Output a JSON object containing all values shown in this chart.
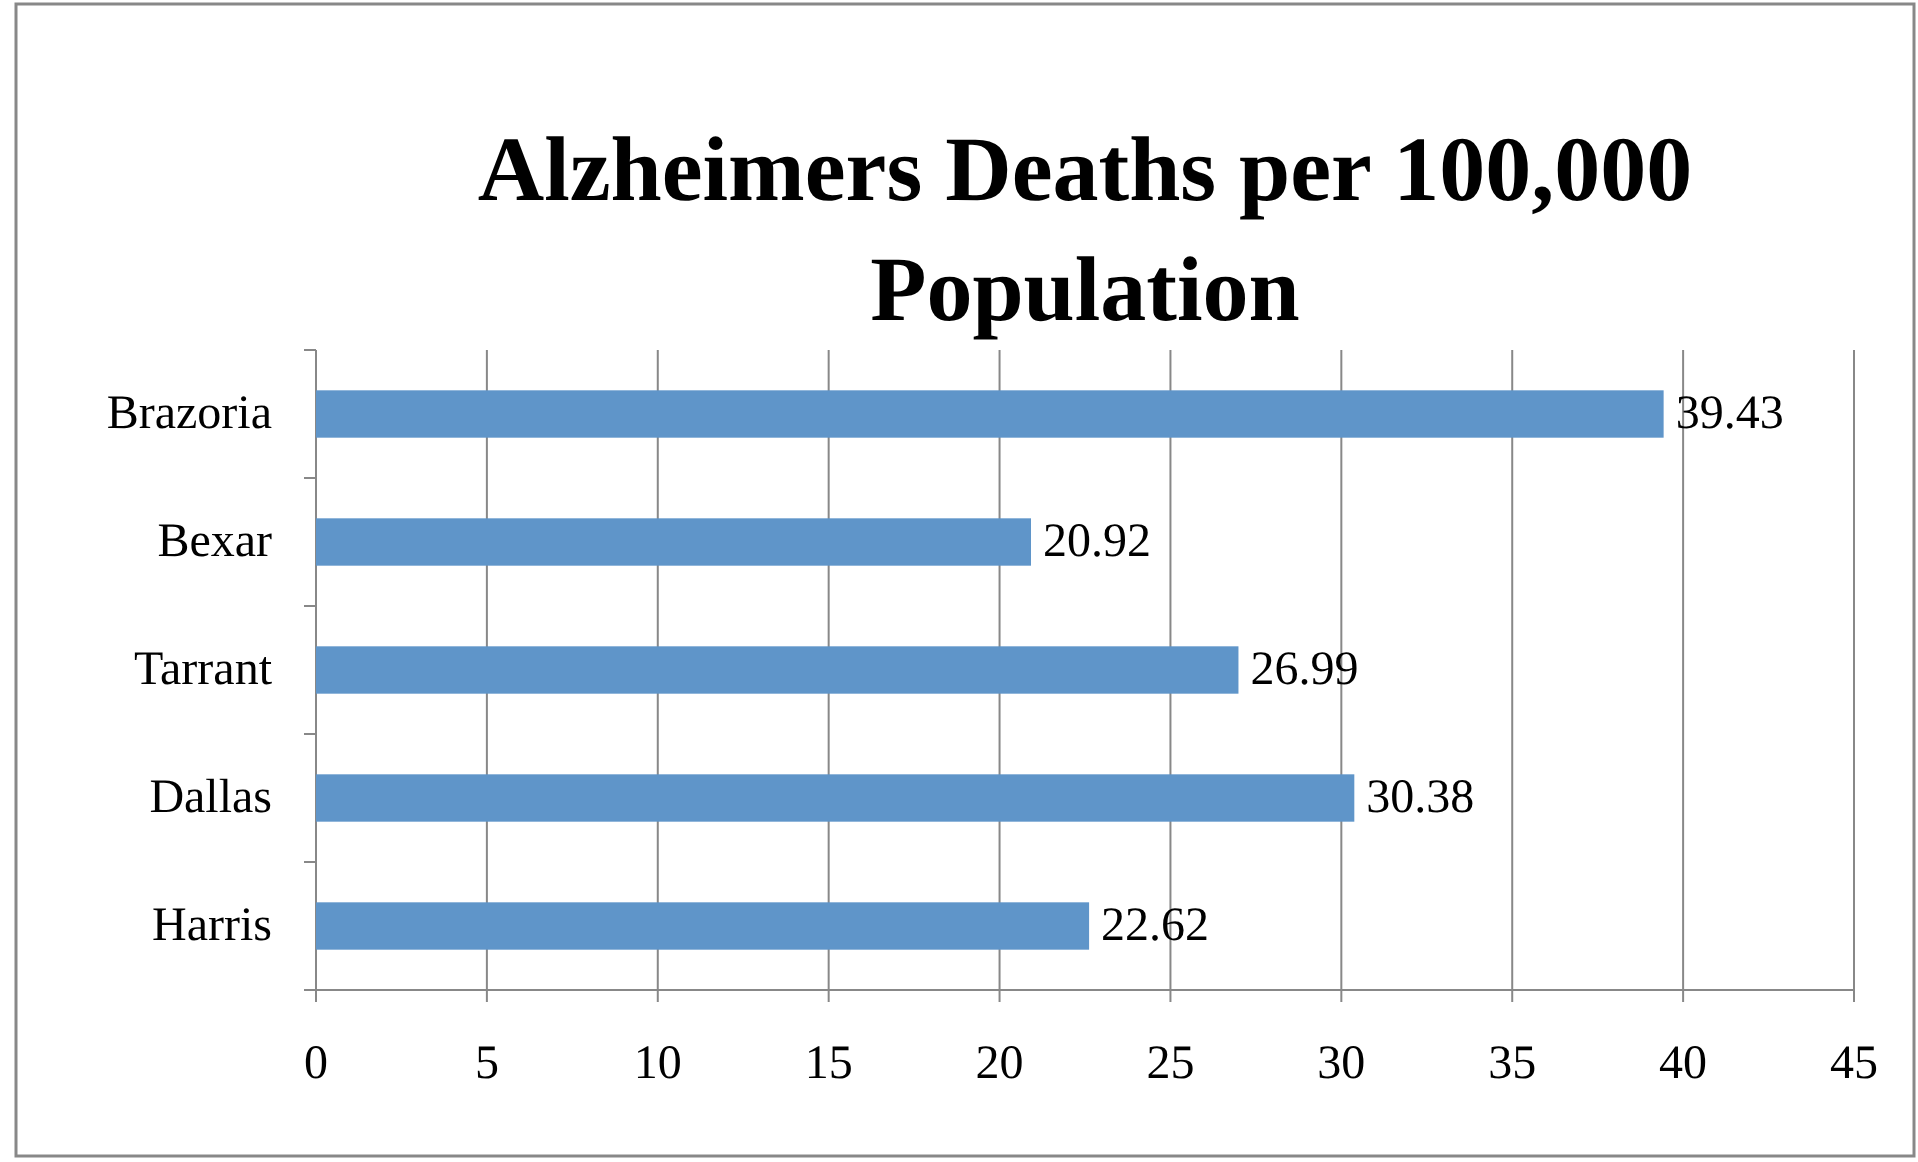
{
  "chart_data": {
    "type": "bar",
    "orientation": "horizontal",
    "title": "Alzheimers Deaths per 100,000 Population",
    "categories": [
      "Brazoria",
      "Bexar",
      "Tarrant",
      "Dallas",
      "Harris"
    ],
    "values": [
      39.43,
      20.92,
      26.99,
      30.38,
      22.62
    ],
    "color": "#5f95c9",
    "xlim": [
      0,
      45
    ],
    "xticks": [
      0,
      5,
      10,
      15,
      20,
      25,
      30,
      35,
      40,
      45
    ],
    "grid": "x",
    "data_labels": true
  }
}
